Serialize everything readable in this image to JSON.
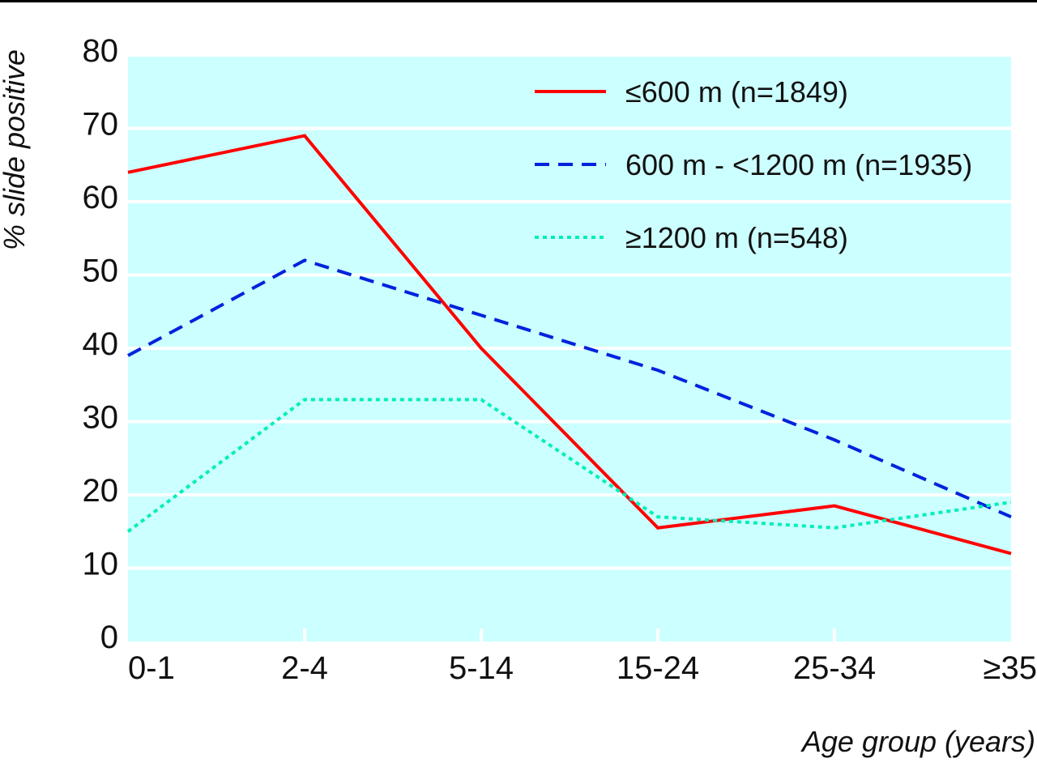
{
  "chart_data": {
    "type": "line",
    "categories": [
      "0-1",
      "2-4",
      "5-14",
      "15-24",
      "25-34",
      "≥35"
    ],
    "xlabel": "Age group (years)",
    "ylabel": "% slide positive",
    "ylim": [
      0,
      80
    ],
    "yticks": [
      0,
      10,
      20,
      30,
      40,
      50,
      60,
      70,
      80
    ],
    "grid": true,
    "plot_background": "#ccffff",
    "legend_position": "top-right",
    "series": [
      {
        "name": "≤600 m (n=1849)",
        "values": [
          64,
          69,
          40,
          15.5,
          18.5,
          12
        ],
        "color": "#ff0000",
        "dash": "solid"
      },
      {
        "name": "600 m - <1200 m (n=1935)",
        "values": [
          39,
          52,
          44.5,
          37,
          27.5,
          17
        ],
        "color": "#0022dd",
        "dash": "dashed"
      },
      {
        "name": "≥1200 m (n=548)",
        "values": [
          15,
          33,
          33,
          17,
          15.5,
          19
        ],
        "color": "#00eebb",
        "dash": "dotted"
      }
    ]
  }
}
